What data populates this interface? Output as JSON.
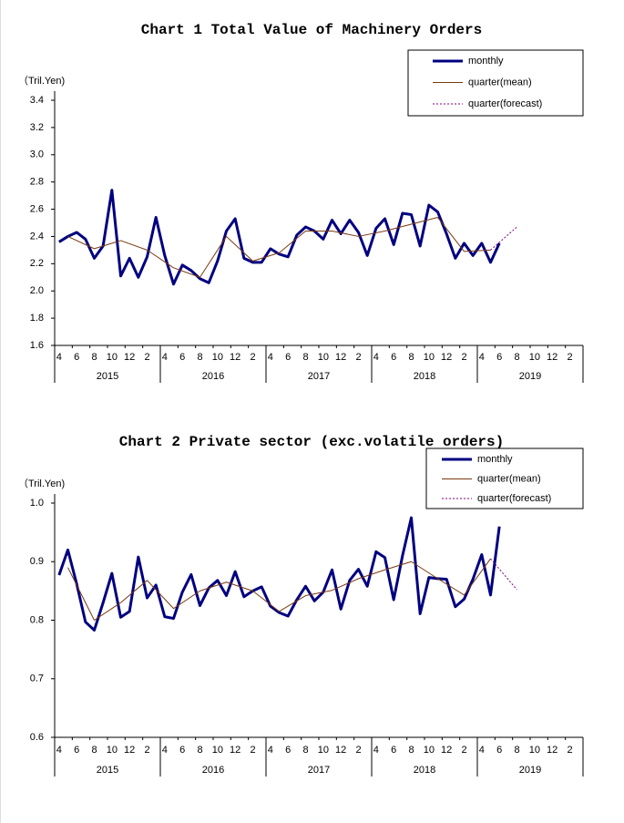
{
  "chart_data": [
    {
      "type": "line",
      "title": "Chart 1 Total Value of Machinery Orders",
      "y_unit": "（Tril.Yen)",
      "ylim": [
        1.6,
        3.4
      ],
      "yticks": [
        1.6,
        1.8,
        {
          "value": 2,
          "label": "2.0"
        },
        2.2,
        2.4,
        2.6,
        2.8,
        {
          "value": 3,
          "label": "3.0"
        },
        3.2,
        3.4
      ],
      "xlim": [
        "2015-04",
        "2020-03"
      ],
      "xticks": [
        {
          "value": "2015-04",
          "label": "4"
        },
        {
          "value": "2015-06",
          "label": "6"
        },
        {
          "value": "2015-08",
          "label": "8"
        },
        {
          "value": "2015-10",
          "label": "10"
        },
        {
          "value": "2015-12",
          "label": "12"
        },
        {
          "value": "2016-02",
          "label": "2"
        },
        {
          "value": "2016-04",
          "label": "4"
        },
        {
          "value": "2016-06",
          "label": "6"
        },
        {
          "value": "2016-08",
          "label": "8"
        },
        {
          "value": "2016-10",
          "label": "10"
        },
        {
          "value": "2016-12",
          "label": "12"
        },
        {
          "value": "2017-02",
          "label": "2"
        },
        {
          "value": "2017-04",
          "label": "4"
        },
        {
          "value": "2017-06",
          "label": "6"
        },
        {
          "value": "2017-08",
          "label": "8"
        },
        {
          "value": "2017-10",
          "label": "10"
        },
        {
          "value": "2017-12",
          "label": "12"
        },
        {
          "value": "2018-02",
          "label": "2"
        },
        {
          "value": "2018-04",
          "label": "4"
        },
        {
          "value": "2018-06",
          "label": "6"
        },
        {
          "value": "2018-08",
          "label": "8"
        },
        {
          "value": "2018-10",
          "label": "10"
        },
        {
          "value": "2018-12",
          "label": "12"
        },
        {
          "value": "2019-02",
          "label": "2"
        },
        {
          "value": "2019-04",
          "label": "4"
        },
        {
          "value": "2019-06",
          "label": "6"
        },
        {
          "value": "2019-08",
          "label": "8"
        },
        {
          "value": "2019-10",
          "label": "10"
        },
        {
          "value": "2019-12",
          "label": "12"
        },
        {
          "value": "2020-02",
          "label": "2"
        }
      ],
      "xgroups": [
        {
          "label": "2015",
          "range": [
            "2015-04",
            "2016-03"
          ]
        },
        {
          "label": "2016",
          "range": [
            "2016-04",
            "2017-03"
          ]
        },
        {
          "label": "2017",
          "range": [
            "2017-04",
            "2018-03"
          ]
        },
        {
          "label": "2018",
          "range": [
            "2018-04",
            "2019-03"
          ]
        },
        {
          "label": "2019",
          "range": [
            "2019-04",
            "2020-03"
          ]
        }
      ],
      "legend": "upper right",
      "series": [
        {
          "name": "monthly",
          "color": "#000080",
          "line_width": 3,
          "line_style": "solid",
          "x": [
            "2015-04",
            "2015-05",
            "2015-06",
            "2015-07",
            "2015-08",
            "2015-09",
            "2015-10",
            "2015-11",
            "2015-12",
            "2016-01",
            "2016-02",
            "2016-03",
            "2016-04",
            "2016-05",
            "2016-06",
            "2016-07",
            "2016-08",
            "2016-09",
            "2016-10",
            "2016-11",
            "2016-12",
            "2017-01",
            "2017-02",
            "2017-03",
            "2017-04",
            "2017-05",
            "2017-06",
            "2017-07",
            "2017-08",
            "2017-09",
            "2017-10",
            "2017-11",
            "2017-12",
            "2018-01",
            "2018-02",
            "2018-03",
            "2018-04",
            "2018-05",
            "2018-06",
            "2018-07",
            "2018-08",
            "2018-09",
            "2018-10",
            "2018-11",
            "2018-12",
            "2019-01",
            "2019-02",
            "2019-03",
            "2019-04",
            "2019-05",
            "2019-06"
          ],
          "values": [
            2.36,
            2.4,
            2.43,
            2.38,
            2.24,
            2.33,
            2.74,
            2.11,
            2.24,
            2.1,
            2.25,
            2.54,
            2.26,
            2.05,
            2.19,
            2.15,
            2.09,
            2.06,
            2.22,
            2.44,
            2.53,
            2.24,
            2.21,
            2.21,
            2.31,
            2.27,
            2.25,
            2.41,
            2.47,
            2.44,
            2.38,
            2.52,
            2.42,
            2.52,
            2.43,
            2.26,
            2.46,
            2.53,
            2.34,
            2.57,
            2.56,
            2.33,
            2.63,
            2.58,
            2.42,
            2.24,
            2.35,
            2.26,
            2.35,
            2.21,
            2.35
          ]
        },
        {
          "name": "quarter(mean)",
          "color": "#7a3a10",
          "line_width": 1,
          "line_style": "solid",
          "x": [
            "2015-05",
            "2015-08",
            "2015-11",
            "2016-02",
            "2016-05",
            "2016-08",
            "2016-11",
            "2017-02",
            "2017-05",
            "2017-08",
            "2017-11",
            "2018-02",
            "2018-05",
            "2018-08",
            "2018-11",
            "2019-02",
            "2019-05"
          ],
          "values": [
            2.4,
            2.31,
            2.37,
            2.3,
            2.17,
            2.1,
            2.4,
            2.22,
            2.28,
            2.44,
            2.44,
            2.4,
            2.44,
            2.49,
            2.54,
            2.29,
            2.3
          ]
        },
        {
          "name": "quarter(forecast)",
          "color": "#800080",
          "line_width": 1,
          "line_style": "dotted",
          "x": [
            "2019-05",
            "2019-08"
          ],
          "values": [
            2.3,
            2.47
          ]
        }
      ]
    },
    {
      "type": "line",
      "title": "Chart 2 Private sector (exc.volatile orders)",
      "y_unit": "（Tril.Yen)",
      "ylim": [
        0.6,
        1.0
      ],
      "yticks": [
        0.6,
        0.7,
        0.8,
        0.9,
        {
          "value": 1,
          "label": "1.0"
        }
      ],
      "xlim": [
        "2015-04",
        "2020-03"
      ],
      "xticks": [
        {
          "value": "2015-04",
          "label": "4"
        },
        {
          "value": "2015-06",
          "label": "6"
        },
        {
          "value": "2015-08",
          "label": "8"
        },
        {
          "value": "2015-10",
          "label": "10"
        },
        {
          "value": "2015-12",
          "label": "12"
        },
        {
          "value": "2016-02",
          "label": "2"
        },
        {
          "value": "2016-04",
          "label": "4"
        },
        {
          "value": "2016-06",
          "label": "6"
        },
        {
          "value": "2016-08",
          "label": "8"
        },
        {
          "value": "2016-10",
          "label": "10"
        },
        {
          "value": "2016-12",
          "label": "12"
        },
        {
          "value": "2017-02",
          "label": "2"
        },
        {
          "value": "2017-04",
          "label": "4"
        },
        {
          "value": "2017-06",
          "label": "6"
        },
        {
          "value": "2017-08",
          "label": "8"
        },
        {
          "value": "2017-10",
          "label": "10"
        },
        {
          "value": "2017-12",
          "label": "12"
        },
        {
          "value": "2018-02",
          "label": "2"
        },
        {
          "value": "2018-04",
          "label": "4"
        },
        {
          "value": "2018-06",
          "label": "6"
        },
        {
          "value": "2018-08",
          "label": "8"
        },
        {
          "value": "2018-10",
          "label": "10"
        },
        {
          "value": "2018-12",
          "label": "12"
        },
        {
          "value": "2019-02",
          "label": "2"
        },
        {
          "value": "2019-04",
          "label": "4"
        },
        {
          "value": "2019-06",
          "label": "6"
        },
        {
          "value": "2019-08",
          "label": "8"
        },
        {
          "value": "2019-10",
          "label": "10"
        },
        {
          "value": "2019-12",
          "label": "12"
        },
        {
          "value": "2020-02",
          "label": "2"
        }
      ],
      "xgroups": [
        {
          "label": "2015",
          "range": [
            "2015-04",
            "2016-03"
          ]
        },
        {
          "label": "2016",
          "range": [
            "2016-04",
            "2017-03"
          ]
        },
        {
          "label": "2017",
          "range": [
            "2017-04",
            "2018-03"
          ]
        },
        {
          "label": "2018",
          "range": [
            "2018-04",
            "2019-03"
          ]
        },
        {
          "label": "2019",
          "range": [
            "2019-04",
            "2020-03"
          ]
        }
      ],
      "legend": "upper right",
      "series": [
        {
          "name": "monthly",
          "color": "#000080",
          "line_width": 3,
          "line_style": "solid",
          "x": [
            "2015-04",
            "2015-05",
            "2015-06",
            "2015-07",
            "2015-08",
            "2015-09",
            "2015-10",
            "2015-11",
            "2015-12",
            "2016-01",
            "2016-02",
            "2016-03",
            "2016-04",
            "2016-05",
            "2016-06",
            "2016-07",
            "2016-08",
            "2016-09",
            "2016-10",
            "2016-11",
            "2016-12",
            "2017-01",
            "2017-02",
            "2017-03",
            "2017-04",
            "2017-05",
            "2017-06",
            "2017-07",
            "2017-08",
            "2017-09",
            "2017-10",
            "2017-11",
            "2017-12",
            "2018-01",
            "2018-02",
            "2018-03",
            "2018-04",
            "2018-05",
            "2018-06",
            "2018-07",
            "2018-08",
            "2018-09",
            "2018-10",
            "2018-11",
            "2018-12",
            "2019-01",
            "2019-02",
            "2019-03",
            "2019-04",
            "2019-05",
            "2019-06"
          ],
          "values": [
            0.877,
            0.92,
            0.862,
            0.797,
            0.783,
            0.83,
            0.88,
            0.805,
            0.815,
            0.908,
            0.838,
            0.86,
            0.806,
            0.803,
            0.848,
            0.878,
            0.825,
            0.855,
            0.868,
            0.842,
            0.883,
            0.84,
            0.85,
            0.857,
            0.824,
            0.813,
            0.807,
            0.835,
            0.858,
            0.833,
            0.848,
            0.886,
            0.819,
            0.868,
            0.887,
            0.858,
            0.917,
            0.907,
            0.835,
            0.91,
            0.975,
            0.811,
            0.873,
            0.871,
            0.87,
            0.823,
            0.836,
            0.87,
            0.912,
            0.843,
            0.96
          ]
        },
        {
          "name": "quarter(mean)",
          "color": "#7a3a10",
          "line_width": 1,
          "line_style": "solid",
          "x": [
            "2015-05",
            "2015-08",
            "2015-11",
            "2016-02",
            "2016-05",
            "2016-08",
            "2016-11",
            "2017-02",
            "2017-05",
            "2017-08",
            "2017-11",
            "2018-02",
            "2018-05",
            "2018-08",
            "2018-11",
            "2019-02",
            "2019-05"
          ],
          "values": [
            0.89,
            0.8,
            0.83,
            0.868,
            0.82,
            0.85,
            0.865,
            0.85,
            0.815,
            0.842,
            0.851,
            0.871,
            0.886,
            0.9,
            0.871,
            0.843,
            0.905
          ]
        },
        {
          "name": "quarter(forecast)",
          "color": "#800080",
          "line_width": 1,
          "line_style": "dotted",
          "x": [
            "2019-05",
            "2019-08"
          ],
          "values": [
            0.905,
            0.852
          ]
        }
      ]
    }
  ]
}
